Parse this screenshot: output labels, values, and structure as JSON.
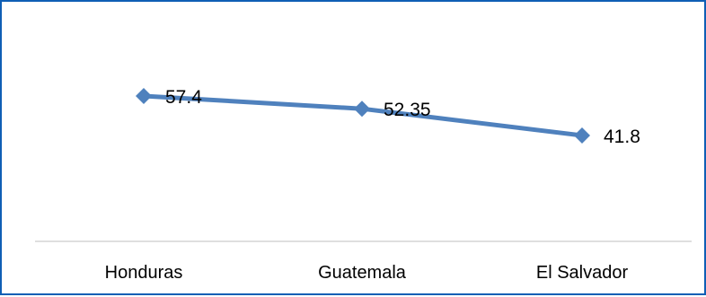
{
  "chart_data": {
    "type": "line",
    "title": "",
    "xlabel": "",
    "ylabel": "",
    "categories": [
      "Honduras",
      "Guatemala",
      "El Salvador"
    ],
    "series": [
      {
        "values": [
          57.4,
          52.35,
          41.8
        ],
        "color": "#4f81bd",
        "marker": "diamond"
      }
    ],
    "data_labels": [
      "57.4",
      "52.35",
      "41.8"
    ],
    "grid": false,
    "legend": "none"
  },
  "colors": {
    "border": "#0f5fb5",
    "series": "#4f81bd",
    "axis": "#bfbfbf"
  }
}
